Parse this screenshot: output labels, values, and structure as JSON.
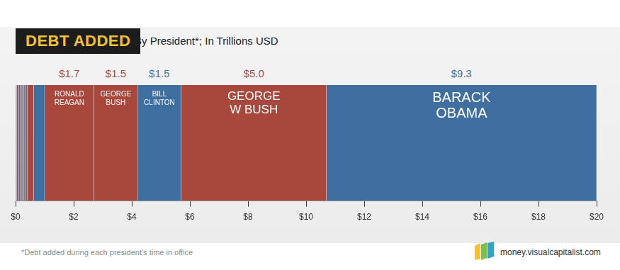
{
  "chart_data": {
    "type": "bar",
    "title": "DEBT ADDED",
    "subtitle": "By President*; In Trillions USD",
    "footnote": "*Debt added during each president's time in office",
    "source": "money.visualcapitalist.com",
    "orientation": "horizontal",
    "stacked": true,
    "grid": false,
    "data_labels": true,
    "tick_labels": "x",
    "categories": [
      null
    ],
    "xlim": [
      0,
      20
    ],
    "xticks": [
      {
        "value": 0,
        "label": "$0"
      },
      {
        "value": 2,
        "label": "$2"
      },
      {
        "value": 4,
        "label": "$4"
      },
      {
        "value": 6,
        "label": "$6"
      },
      {
        "value": 8,
        "label": "$8"
      },
      {
        "value": 10,
        "label": "$10"
      },
      {
        "value": 12,
        "label": "$12"
      },
      {
        "value": 14,
        "label": "$14"
      },
      {
        "value": 16,
        "label": "$16"
      },
      {
        "value": 18,
        "label": "$18"
      },
      {
        "value": 20,
        "label": "$20"
      }
    ],
    "series": [
      {
        "name": null,
        "color": "#a8483d",
        "values": [
          0.04
        ]
      },
      {
        "name": null,
        "color": "#3e6fa0",
        "values": [
          0.04
        ]
      },
      {
        "name": null,
        "color": "#a8483d",
        "values": [
          0.04
        ]
      },
      {
        "name": null,
        "color": "#3e6fa0",
        "values": [
          0.04
        ]
      },
      {
        "name": null,
        "color": "#a8483d",
        "values": [
          0.04
        ]
      },
      {
        "name": null,
        "color": "#3e6fa0",
        "values": [
          0.04
        ]
      },
      {
        "name": null,
        "color": "#a8483d",
        "values": [
          0.04
        ]
      },
      {
        "name": null,
        "color": "#3e6fa0",
        "values": [
          0.04
        ]
      },
      {
        "name": null,
        "color": "#a8483d",
        "values": [
          0.04
        ]
      },
      {
        "name": null,
        "color": "#3e6fa0",
        "values": [
          0.04
        ]
      },
      {
        "name": null,
        "color": "#a8483d",
        "values": [
          0.22
        ]
      },
      {
        "name": null,
        "color": "#3e6fa0",
        "values": [
          0.38
        ]
      },
      {
        "name": "RONALD REAGAN",
        "color": "#a8483d",
        "values": [
          1.7
        ],
        "value_labels": [
          "$1.7"
        ]
      },
      {
        "name": "GEORGE BUSH",
        "color": "#a8483d",
        "values": [
          1.5
        ],
        "value_labels": [
          "$1.5"
        ]
      },
      {
        "name": "BILL CLINTON",
        "color": "#3e6fa0",
        "values": [
          1.5
        ],
        "value_labels": [
          "$1.5"
        ]
      },
      {
        "name": "GEORGE W BUSH",
        "color": "#a8483d",
        "values": [
          5.0
        ],
        "value_labels": [
          "$5.0"
        ]
      },
      {
        "name": "BARACK OBAMA",
        "color": "#3e6fa0",
        "values": [
          9.3
        ],
        "value_labels": [
          "$9.3"
        ]
      }
    ]
  }
}
